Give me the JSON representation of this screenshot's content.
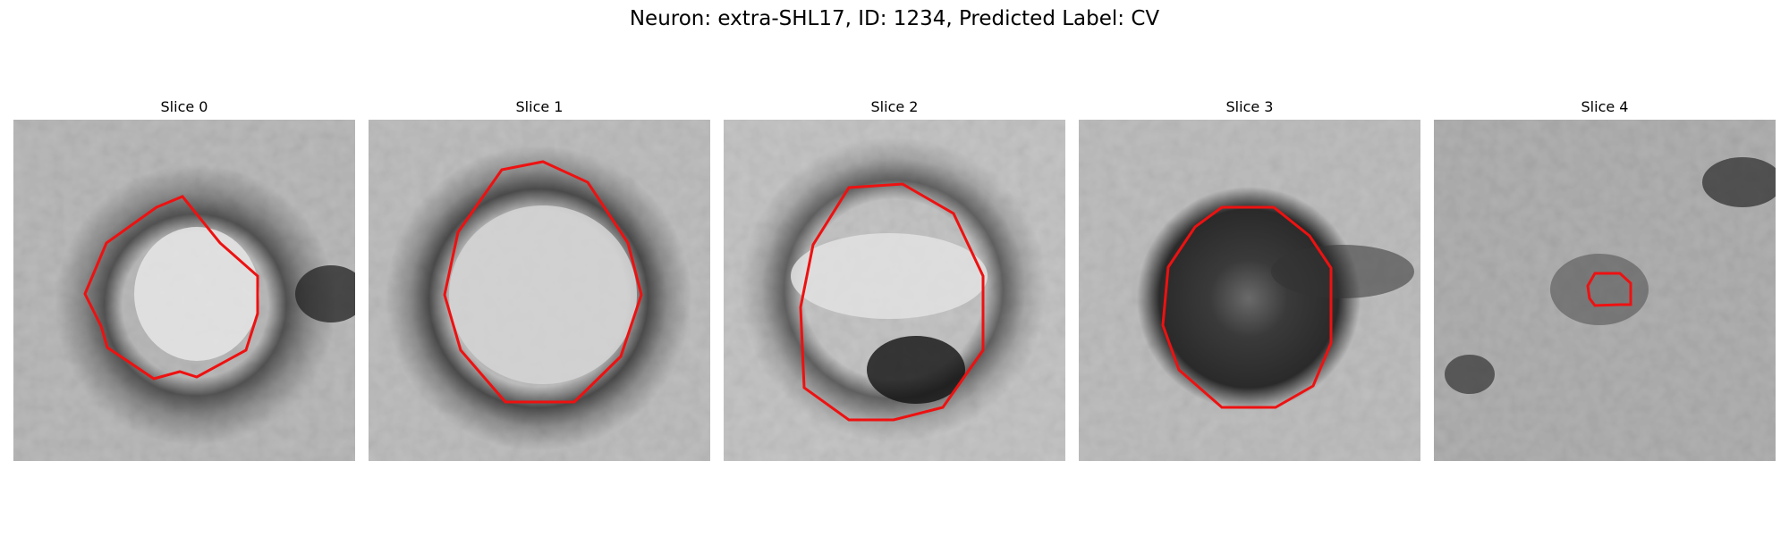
{
  "figure": {
    "title": "Neuron: extra-SHL17, ID: 1234, Predicted Label: CV"
  },
  "colors": {
    "background": "#ffffff",
    "contour": "#ee1111"
  },
  "slices": [
    {
      "title": "Slice 0"
    },
    {
      "title": "Slice 1"
    },
    {
      "title": "Slice 2"
    },
    {
      "title": "Slice 3"
    },
    {
      "title": "Slice 4"
    }
  ]
}
